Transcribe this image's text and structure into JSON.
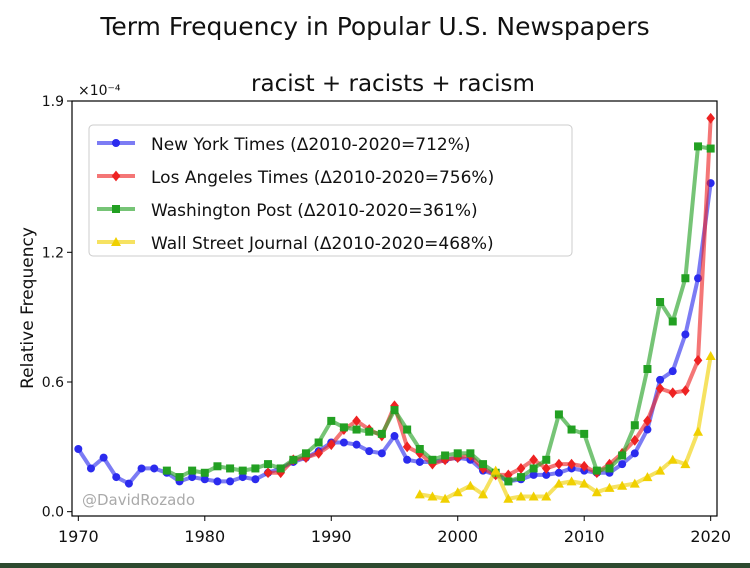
{
  "page_title": "Term Frequency in Popular U.S. Newspapers",
  "chart_data": {
    "type": "line",
    "title": "racist + racists + racism",
    "xlabel": "",
    "ylabel": "Relative Frequency",
    "y_scale_label": "×10⁻⁴",
    "xlim": [
      1969.5,
      2020.5
    ],
    "ylim": [
      -0.02,
      1.9
    ],
    "xticks": [
      1970,
      1980,
      1990,
      2000,
      2010,
      2020
    ],
    "yticks": [
      0.0,
      0.6,
      1.2,
      1.9
    ],
    "ytick_labels": [
      "0.0",
      "0.6",
      "1.2",
      "1.9"
    ],
    "watermark": "@DavidRozado",
    "legend_position": "upper-left",
    "series": [
      {
        "name": "New York Times (Δ2010-2020=712%)",
        "color": "#2b2bee",
        "marker": "circle",
        "x": [
          1970,
          1971,
          1972,
          1973,
          1974,
          1975,
          1976,
          1977,
          1978,
          1979,
          1980,
          1981,
          1982,
          1983,
          1984,
          1985,
          1986,
          1987,
          1988,
          1989,
          1990,
          1991,
          1992,
          1993,
          1994,
          1995,
          1996,
          1997,
          1998,
          1999,
          2000,
          2001,
          2002,
          2003,
          2004,
          2005,
          2006,
          2007,
          2008,
          2009,
          2010,
          2011,
          2012,
          2013,
          2014,
          2015,
          2016,
          2017,
          2018,
          2019,
          2020
        ],
        "values": [
          0.29,
          0.2,
          0.25,
          0.16,
          0.13,
          0.2,
          0.2,
          0.18,
          0.14,
          0.16,
          0.15,
          0.14,
          0.14,
          0.16,
          0.15,
          0.18,
          0.2,
          0.23,
          0.25,
          0.28,
          0.32,
          0.32,
          0.31,
          0.28,
          0.27,
          0.35,
          0.24,
          0.23,
          0.23,
          0.24,
          0.25,
          0.24,
          0.19,
          0.17,
          0.14,
          0.15,
          0.17,
          0.17,
          0.18,
          0.2,
          0.19,
          0.18,
          0.18,
          0.22,
          0.27,
          0.38,
          0.61,
          0.65,
          0.82,
          1.08,
          1.52
        ]
      },
      {
        "name": "Los Angeles Times (Δ2010-2020=756%)",
        "color": "#ee2222",
        "marker": "diamond",
        "x": [
          1985,
          1986,
          1987,
          1988,
          1989,
          1990,
          1991,
          1992,
          1993,
          1994,
          1995,
          1996,
          1997,
          1998,
          1999,
          2000,
          2001,
          2002,
          2003,
          2004,
          2005,
          2006,
          2007,
          2008,
          2009,
          2010,
          2011,
          2012,
          2013,
          2014,
          2015,
          2016,
          2017,
          2018,
          2019,
          2020
        ],
        "values": [
          0.18,
          0.18,
          0.24,
          0.25,
          0.27,
          0.31,
          0.38,
          0.42,
          0.38,
          0.35,
          0.49,
          0.3,
          0.27,
          0.22,
          0.24,
          0.25,
          0.26,
          0.2,
          0.17,
          0.17,
          0.2,
          0.24,
          0.2,
          0.22,
          0.22,
          0.21,
          0.18,
          0.22,
          0.27,
          0.33,
          0.42,
          0.57,
          0.55,
          0.56,
          0.7,
          1.82
        ]
      },
      {
        "name": "Washington Post (Δ2010-2020=361%)",
        "color": "#22a022",
        "marker": "square",
        "x": [
          1977,
          1978,
          1979,
          1980,
          1981,
          1982,
          1983,
          1984,
          1985,
          1986,
          1987,
          1988,
          1989,
          1990,
          1991,
          1992,
          1993,
          1994,
          1995,
          1996,
          1997,
          1998,
          1999,
          2000,
          2001,
          2002,
          2003,
          2004,
          2005,
          2006,
          2007,
          2008,
          2009,
          2010,
          2011,
          2012,
          2013,
          2014,
          2015,
          2016,
          2017,
          2018,
          2019,
          2020
        ],
        "values": [
          0.19,
          0.16,
          0.19,
          0.18,
          0.21,
          0.2,
          0.19,
          0.2,
          0.22,
          0.2,
          0.24,
          0.27,
          0.32,
          0.42,
          0.39,
          0.38,
          0.37,
          0.36,
          0.47,
          0.38,
          0.29,
          0.24,
          0.26,
          0.27,
          0.27,
          0.22,
          0.18,
          0.14,
          0.16,
          0.2,
          0.24,
          0.45,
          0.38,
          0.36,
          0.19,
          0.2,
          0.26,
          0.4,
          0.66,
          0.97,
          0.88,
          1.08,
          1.69,
          1.68
        ]
      },
      {
        "name": "Wall Street Journal (Δ2010-2020=468%)",
        "color": "#f0d000",
        "marker": "triangle",
        "x": [
          1997,
          1998,
          1999,
          2000,
          2001,
          2002,
          2003,
          2004,
          2005,
          2006,
          2007,
          2008,
          2009,
          2010,
          2011,
          2012,
          2013,
          2014,
          2015,
          2016,
          2017,
          2018,
          2019,
          2020
        ],
        "values": [
          0.08,
          0.07,
          0.06,
          0.09,
          0.12,
          0.08,
          0.19,
          0.06,
          0.07,
          0.07,
          0.07,
          0.13,
          0.14,
          0.13,
          0.09,
          0.11,
          0.12,
          0.13,
          0.16,
          0.19,
          0.24,
          0.22,
          0.37,
          0.72
        ]
      }
    ]
  }
}
